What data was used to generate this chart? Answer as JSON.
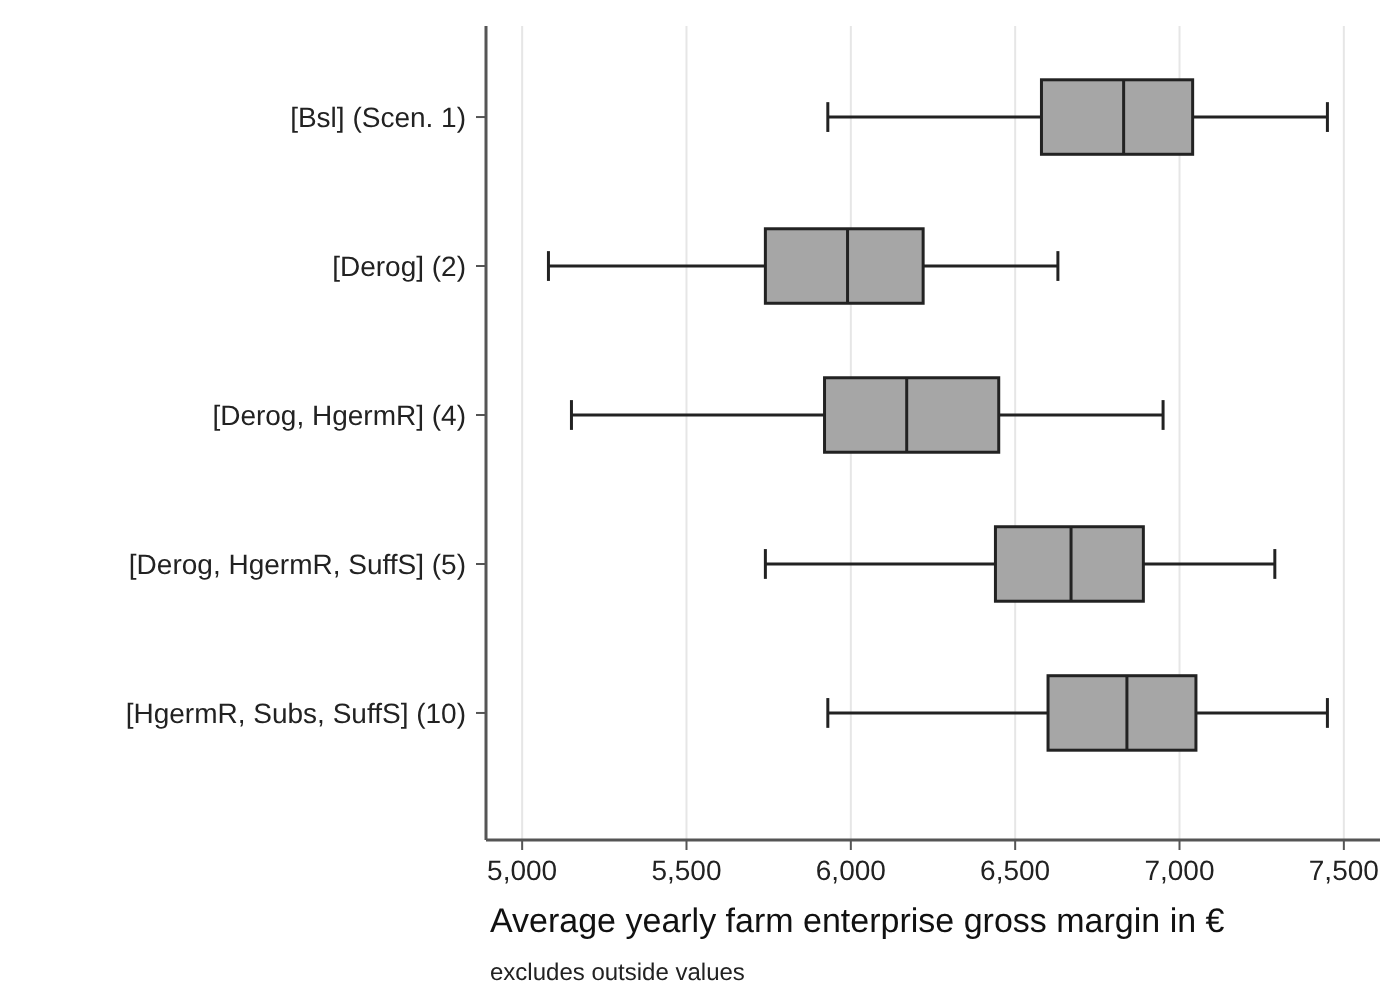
{
  "chart_data": {
    "type": "box",
    "orientation": "horizontal",
    "categories": [
      "[Bsl] (Scen. 1)",
      "[Derog] (2)",
      "[Derog, HgermR] (4)",
      "[Derog, HgermR, SuffS] (5)",
      "[HgermR, Subs, SuffS] (10)"
    ],
    "boxes": [
      {
        "low": 5930,
        "q1": 6580,
        "median": 6830,
        "q3": 7040,
        "high": 7450
      },
      {
        "low": 5080,
        "q1": 5740,
        "median": 5990,
        "q3": 6220,
        "high": 6630
      },
      {
        "low": 5150,
        "q1": 5920,
        "median": 6170,
        "q3": 6450,
        "high": 6950
      },
      {
        "low": 5740,
        "q1": 6440,
        "median": 6670,
        "q3": 6890,
        "high": 7290
      },
      {
        "low": 5930,
        "q1": 6600,
        "median": 6840,
        "q3": 7050,
        "high": 7450
      }
    ],
    "color": "#a6a6a6",
    "xlabel": "Average yearly farm enterprise gross margin in €",
    "annotations": [
      "excludes outside values"
    ],
    "xlim": [
      4890,
      7610
    ],
    "xticks": [
      {
        "value": 5000,
        "label": "5,000"
      },
      {
        "value": 5500,
        "label": "5,500"
      },
      {
        "value": 6000,
        "label": "6,000"
      },
      {
        "value": 6500,
        "label": "6,500"
      },
      {
        "value": 7000,
        "label": "7,000"
      },
      {
        "value": 7500,
        "label": "7,500"
      }
    ],
    "grid": "x"
  }
}
